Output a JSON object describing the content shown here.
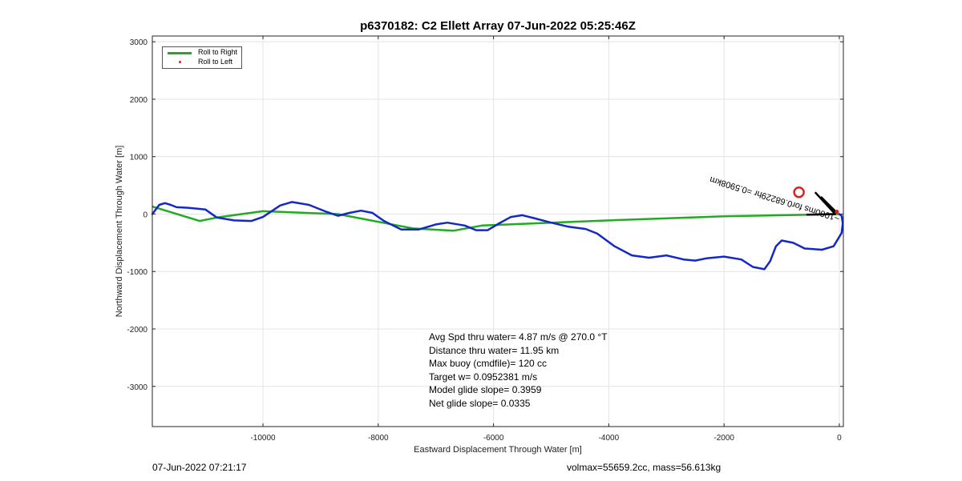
{
  "figure": {
    "title": "p6370182: C2 Ellett Array 07-Jun-2022 05:25:46Z",
    "footer_left": "07-Jun-2022 07:21:17",
    "footer_right": "volmax=55659.2cc, mass=56.613kg"
  },
  "legend": {
    "items": [
      {
        "label": "Roll to Right",
        "color": "#22aa22",
        "kind": "line"
      },
      {
        "label": "Roll to Left",
        "color": "#dd2222",
        "kind": "dot"
      }
    ]
  },
  "stats": [
    "Avg Spd thru water=  4.87 m/s @ 270.0 °T",
    "Distance thru water= 11.95 km",
    "Max buoy (cmdfile)= 120 cc",
    "Target w= 0.0952381 m/s",
    "Model glide slope= 0.3959",
    "Net glide slope= 0.0335"
  ],
  "annotation": {
    "text": "~1000ms for0.68229hr =0.5908km",
    "rotation_deg": 197
  },
  "chart_data": {
    "type": "line",
    "xlabel": "Eastward Displacement Through Water [m]",
    "ylabel": "Northward Displacement Through Water [m]",
    "xlim": [
      -11920,
      70
    ],
    "ylim": [
      -3700,
      3100
    ],
    "xticks": [
      -10000,
      -8000,
      -6000,
      -4000,
      -2000,
      0
    ],
    "yticks": [
      -3000,
      -2000,
      -1000,
      0,
      1000,
      2000,
      3000
    ],
    "xtick_labels": [
      "-10000",
      "-8000",
      "-6000",
      "-4000",
      "-2000",
      "0"
    ],
    "ytick_labels": [
      "-3000",
      "-2000",
      "-1000",
      "0",
      "1000",
      "2000",
      "3000"
    ],
    "grid": true,
    "legend_position": "top-left",
    "colors": {
      "track": "#1428c8",
      "roll_right": "#22aa22",
      "roll_left": "#dd2222",
      "marker": "#dd2222"
    },
    "series": [
      {
        "name": "Roll to Right",
        "points": [
          [
            0,
            0
          ],
          [
            -2000,
            -40
          ],
          [
            -4000,
            -110
          ],
          [
            -6200,
            -200
          ],
          [
            -6700,
            -290
          ],
          [
            -7400,
            -250
          ],
          [
            -8700,
            0
          ],
          [
            -10000,
            50
          ],
          [
            -10800,
            -60
          ],
          [
            -11100,
            -120
          ],
          [
            -11920,
            130
          ]
        ]
      },
      {
        "name": "",
        "points": [
          [
            -11920,
            0
          ],
          [
            -11800,
            160
          ],
          [
            -11700,
            190
          ],
          [
            -11600,
            160
          ],
          [
            -11500,
            120
          ],
          [
            -11300,
            110
          ],
          [
            -11000,
            80
          ],
          [
            -10800,
            -60
          ],
          [
            -10500,
            -110
          ],
          [
            -10200,
            -120
          ],
          [
            -10000,
            -50
          ],
          [
            -9700,
            150
          ],
          [
            -9500,
            210
          ],
          [
            -9200,
            160
          ],
          [
            -8900,
            40
          ],
          [
            -8700,
            -30
          ],
          [
            -8500,
            20
          ],
          [
            -8300,
            60
          ],
          [
            -8100,
            20
          ],
          [
            -7900,
            -120
          ],
          [
            -7600,
            -270
          ],
          [
            -7300,
            -270
          ],
          [
            -7000,
            -180
          ],
          [
            -6800,
            -150
          ],
          [
            -6500,
            -200
          ],
          [
            -6300,
            -280
          ],
          [
            -6100,
            -280
          ],
          [
            -5900,
            -160
          ],
          [
            -5700,
            -50
          ],
          [
            -5500,
            -20
          ],
          [
            -5300,
            -70
          ],
          [
            -5000,
            -150
          ],
          [
            -4700,
            -220
          ],
          [
            -4400,
            -260
          ],
          [
            -4200,
            -340
          ],
          [
            -3900,
            -560
          ],
          [
            -3600,
            -720
          ],
          [
            -3300,
            -760
          ],
          [
            -3000,
            -720
          ],
          [
            -2700,
            -790
          ],
          [
            -2500,
            -810
          ],
          [
            -2300,
            -770
          ],
          [
            -2000,
            -740
          ],
          [
            -1700,
            -790
          ],
          [
            -1500,
            -920
          ],
          [
            -1300,
            -960
          ],
          [
            -1200,
            -820
          ],
          [
            -1100,
            -560
          ],
          [
            -1000,
            -460
          ],
          [
            -800,
            -500
          ],
          [
            -600,
            -600
          ],
          [
            -300,
            -620
          ],
          [
            -100,
            -560
          ],
          [
            40,
            -330
          ],
          [
            60,
            -160
          ],
          [
            40,
            -30
          ],
          [
            0,
            0
          ]
        ]
      }
    ],
    "start_marker": {
      "x": -700,
      "y": 380
    },
    "heading_segments": [
      [
        [
          -420,
          380
        ],
        [
          -80,
          10
        ]
      ],
      [
        [
          -570,
          -10
        ],
        [
          -60,
          0
        ]
      ],
      [
        [
          -320,
          300
        ],
        [
          -40,
          20
        ]
      ]
    ]
  }
}
